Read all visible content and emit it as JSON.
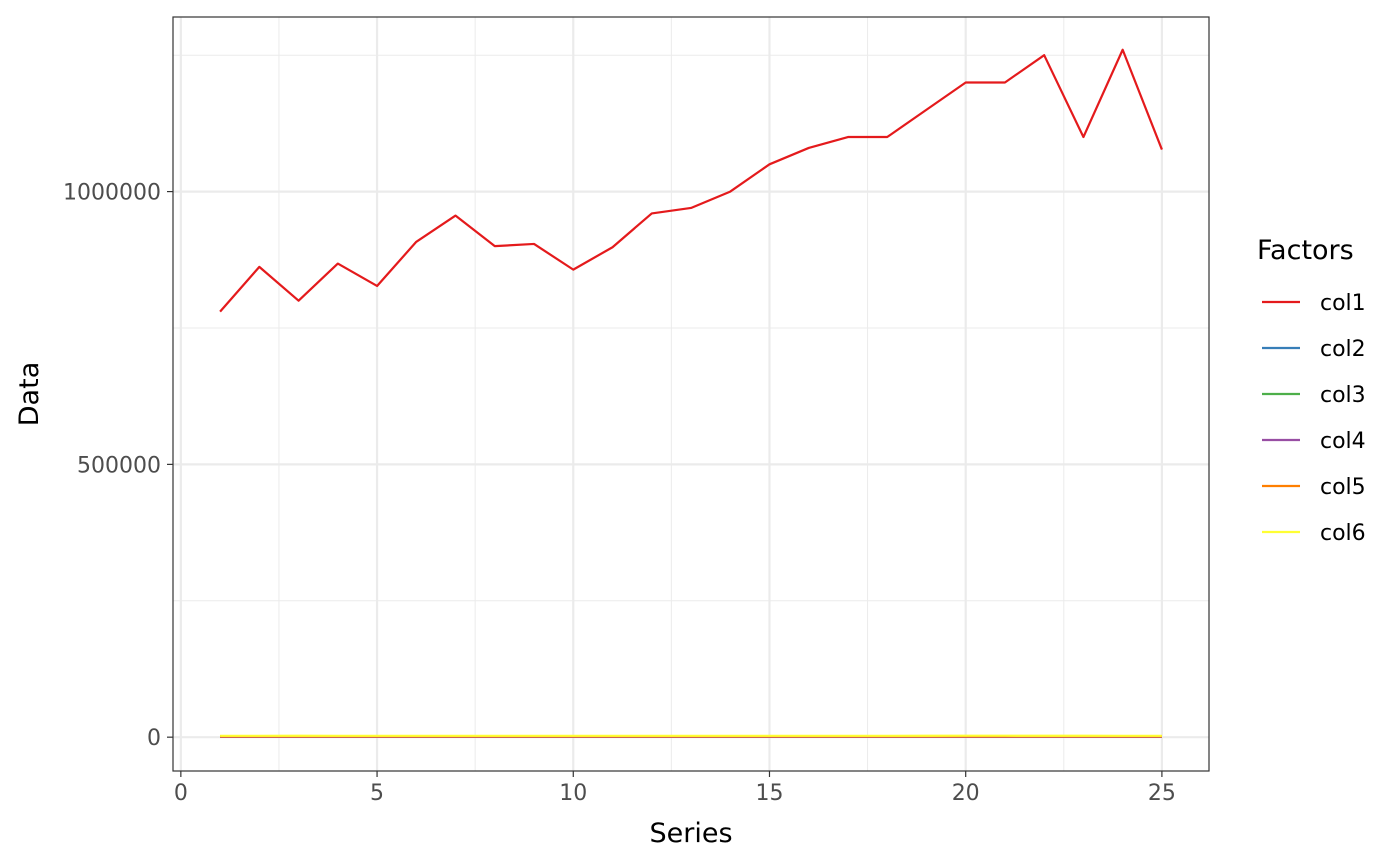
{
  "chart_data": {
    "type": "line",
    "xlabel": "Series",
    "ylabel": "Data",
    "xlim": [
      -0.2,
      26.2
    ],
    "ylim": [
      -62000,
      1320000
    ],
    "x_ticks": [
      0,
      5,
      10,
      15,
      20,
      25
    ],
    "x_tick_labels": [
      "0",
      "5",
      "10",
      "15",
      "20",
      "25"
    ],
    "y_ticks": [
      0,
      500000,
      1000000
    ],
    "y_tick_labels": [
      "0",
      "500000",
      "1000000"
    ],
    "x_minor_ticks": [
      2.5,
      7.5,
      12.5,
      17.5,
      22.5
    ],
    "y_minor_ticks": [
      250000,
      750000,
      1250000
    ],
    "grid": true,
    "legend": {
      "title": "Factors",
      "position": "right"
    },
    "x": [
      1,
      2,
      3,
      4,
      5,
      6,
      7,
      8,
      9,
      10,
      11,
      12,
      13,
      14,
      15,
      16,
      17,
      18,
      19,
      20,
      21,
      22,
      23,
      24,
      25
    ],
    "series": [
      {
        "name": "col1",
        "color": "#E41A1C",
        "values": [
          780000,
          862000,
          800000,
          868000,
          827000,
          908000,
          956000,
          900000,
          904000,
          857000,
          898000,
          960000,
          970000,
          1000000,
          1050000,
          1080000,
          1100000,
          1100000,
          1150000,
          1200000,
          1200000,
          1250000,
          1100000,
          1260000,
          1077000
        ]
      },
      {
        "name": "col2",
        "color": "#377EB8",
        "values": [
          2000,
          2000,
          2000,
          2000,
          2000,
          2000,
          2000,
          2000,
          2000,
          2000,
          2000,
          2000,
          2000,
          2000,
          2000,
          2000,
          2000,
          2000,
          2000,
          2000,
          2000,
          2000,
          2000,
          2000,
          2000
        ]
      },
      {
        "name": "col3",
        "color": "#4DAF4A",
        "values": [
          1000,
          1000,
          1000,
          1000,
          1000,
          1000,
          1000,
          1000,
          1000,
          1000,
          1000,
          1000,
          1000,
          1000,
          1000,
          1000,
          1000,
          1000,
          1000,
          1000,
          1000,
          1000,
          1000,
          1000,
          1000
        ]
      },
      {
        "name": "col4",
        "color": "#984EA3",
        "values": [
          500,
          500,
          500,
          500,
          500,
          500,
          500,
          500,
          500,
          500,
          500,
          500,
          500,
          500,
          500,
          500,
          500,
          500,
          500,
          500,
          500,
          500,
          500,
          500,
          500
        ]
      },
      {
        "name": "col5",
        "color": "#FF7F00",
        "values": [
          1500,
          1500,
          1500,
          1500,
          1500,
          1500,
          1500,
          1500,
          1500,
          1500,
          1500,
          1500,
          1500,
          1500,
          1500,
          1500,
          1500,
          1500,
          1500,
          1500,
          1500,
          1500,
          1500,
          1500,
          1500
        ]
      },
      {
        "name": "col6",
        "color": "#FFFF33",
        "values": [
          2500,
          2500,
          2600,
          2500,
          2500,
          2500,
          2500,
          2500,
          2500,
          2500,
          2500,
          2500,
          2500,
          2500,
          2500,
          2500,
          2500,
          2500,
          2600,
          2700,
          2700,
          2600,
          2600,
          2500,
          2500
        ]
      }
    ]
  }
}
